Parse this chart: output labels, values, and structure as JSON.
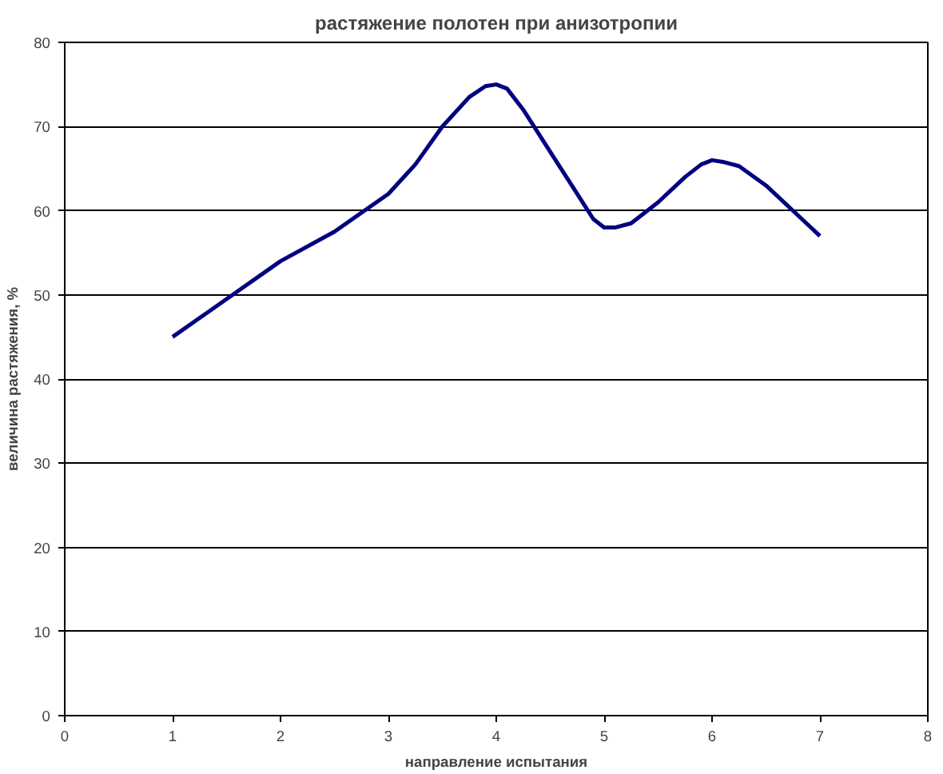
{
  "chart_data": {
    "type": "line",
    "title": "растяжение полотен при анизотропии",
    "xlabel": "направление испытания",
    "ylabel": "величина растяжения, %",
    "x": [
      1,
      1.5,
      2,
      2.5,
      3,
      3.25,
      3.5,
      3.75,
      3.9,
      4,
      4.1,
      4.25,
      4.5,
      4.75,
      4.9,
      5,
      5.1,
      5.25,
      5.5,
      5.75,
      5.9,
      6,
      6.1,
      6.25,
      6.5,
      6.75,
      7
    ],
    "series": [
      {
        "color": "#000080",
        "values": [
          45,
          49.5,
          54,
          57.5,
          62,
          65.5,
          70,
          73.5,
          74.8,
          75,
          74.5,
          72,
          67,
          62,
          59,
          58,
          58,
          58.5,
          61,
          64,
          65.5,
          66,
          65.8,
          65.3,
          63,
          60,
          57
        ]
      }
    ],
    "xlim": [
      0,
      8
    ],
    "xticks": [
      0,
      1,
      2,
      3,
      4,
      5,
      6,
      7,
      8
    ],
    "ylim": [
      0,
      80
    ],
    "yticks": [
      0,
      10,
      20,
      30,
      40,
      50,
      60,
      70,
      80
    ],
    "grid": "y",
    "marker": "none",
    "line_style": "solid"
  }
}
